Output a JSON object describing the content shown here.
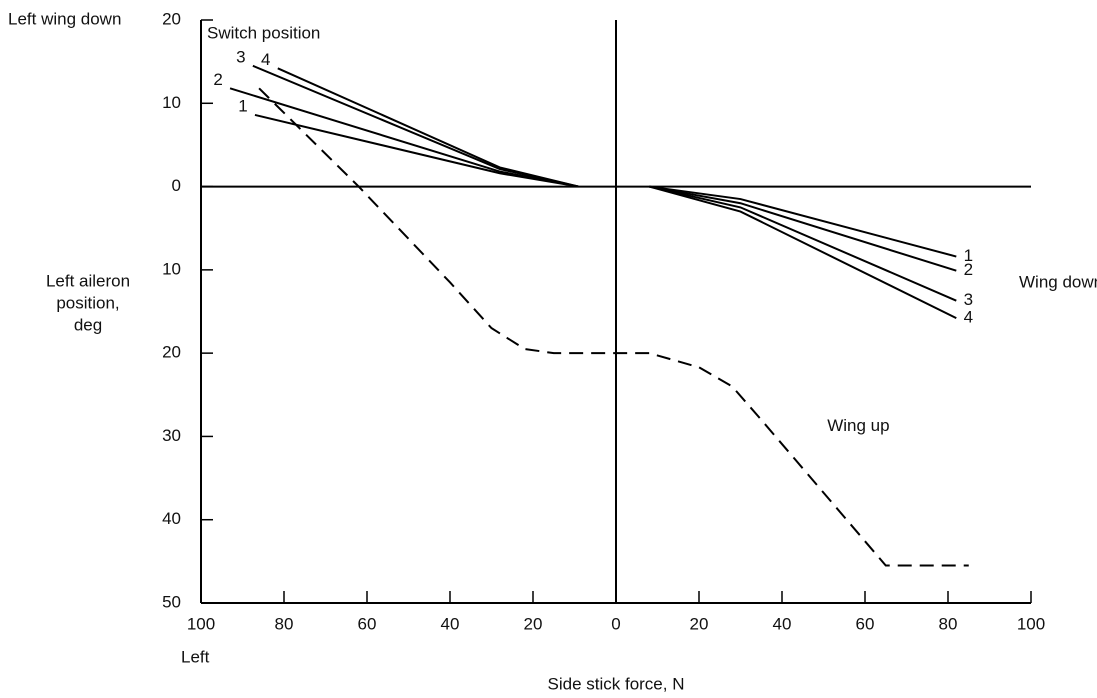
{
  "chart_data": {
    "type": "line",
    "annotations": {
      "top_left": "Left wing down",
      "switch": "Switch position",
      "wing_down": "Wing down",
      "left": "Left"
    },
    "ylabel": [
      "Left aileron",
      "position,",
      "deg"
    ],
    "xlabel": "Side stick force, N",
    "xlim": [
      -100,
      100
    ],
    "ylim": [
      -50,
      20
    ],
    "xticks": [
      {
        "value": -100,
        "label": "100"
      },
      {
        "value": -80,
        "label": "80"
      },
      {
        "value": -60,
        "label": "60"
      },
      {
        "value": -40,
        "label": "40"
      },
      {
        "value": -20,
        "label": "20"
      },
      0,
      20,
      40,
      60,
      80,
      100
    ],
    "yticks": [
      20,
      10,
      0,
      {
        "value": -10,
        "label": "10"
      },
      {
        "value": -20,
        "label": "20"
      },
      {
        "value": -30,
        "label": "30"
      },
      {
        "value": -40,
        "label": "40"
      },
      {
        "value": -50,
        "label": "50"
      }
    ],
    "series": [
      {
        "name": "1",
        "color": "#000000",
        "style": "solid",
        "x": [
          -87,
          -28,
          -9,
          null,
          8,
          30,
          82
        ],
        "values": [
          8.6,
          1.6,
          0,
          null,
          0,
          -1.5,
          -8.4
        ]
      },
      {
        "name": "2",
        "color": "#000000",
        "style": "solid",
        "x": [
          -93,
          -28,
          -9,
          null,
          8,
          30,
          82
        ],
        "values": [
          11.8,
          1.8,
          0,
          null,
          0,
          -2,
          -10.1
        ]
      },
      {
        "name": "3",
        "color": "#000000",
        "style": "solid",
        "x": [
          -87.5,
          -28,
          -9,
          null,
          8,
          30,
          82
        ],
        "values": [
          14.5,
          2.1,
          0,
          null,
          0,
          -2.5,
          -13.7
        ]
      },
      {
        "name": "4",
        "color": "#000000",
        "style": "solid",
        "x": [
          -81.5,
          -28,
          -9,
          null,
          8,
          30,
          82
        ],
        "values": [
          14.2,
          2.3,
          0,
          null,
          0,
          -3,
          -15.8
        ]
      },
      {
        "name": "Wing up",
        "color": "#000000",
        "style": "dashed",
        "x": [
          -86,
          -62,
          -40,
          -30,
          -22,
          -15,
          0,
          8,
          20,
          28,
          35,
          65,
          85
        ],
        "values": [
          11.8,
          0,
          -11.5,
          -17,
          -19.5,
          -20,
          -20,
          -20,
          -21.7,
          -24,
          -28,
          -45.5,
          -45.5
        ]
      }
    ]
  }
}
